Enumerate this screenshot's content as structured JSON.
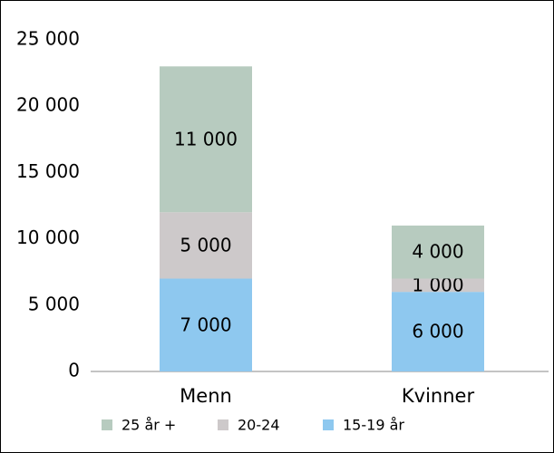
{
  "chart_data": {
    "type": "stacked_bar",
    "categories": [
      "Menn",
      "Kvinner"
    ],
    "series": [
      {
        "name": "15-19 år",
        "color": "#8ec8ef",
        "values": [
          7000,
          6000
        ],
        "value_labels": [
          "7 000",
          "6 000"
        ]
      },
      {
        "name": "20-24",
        "color": "#cdc9ca",
        "values": [
          5000,
          1000
        ],
        "value_labels": [
          "5 000",
          "1 000"
        ]
      },
      {
        "name": "25 år +",
        "color": "#b7cbbf",
        "values": [
          11000,
          4000
        ],
        "value_labels": [
          "11 000",
          "4 000"
        ]
      }
    ],
    "ylim": [
      0,
      25000
    ],
    "yticks": [
      {
        "value": 0,
        "label": "0"
      },
      {
        "value": 5000,
        "label": "5 000"
      },
      {
        "value": 10000,
        "label": "10 000"
      },
      {
        "value": 15000,
        "label": "15 000"
      },
      {
        "value": 20000,
        "label": "20 000"
      },
      {
        "value": 25000,
        "label": "25 000"
      }
    ],
    "grid": false,
    "legend": "bottom"
  }
}
